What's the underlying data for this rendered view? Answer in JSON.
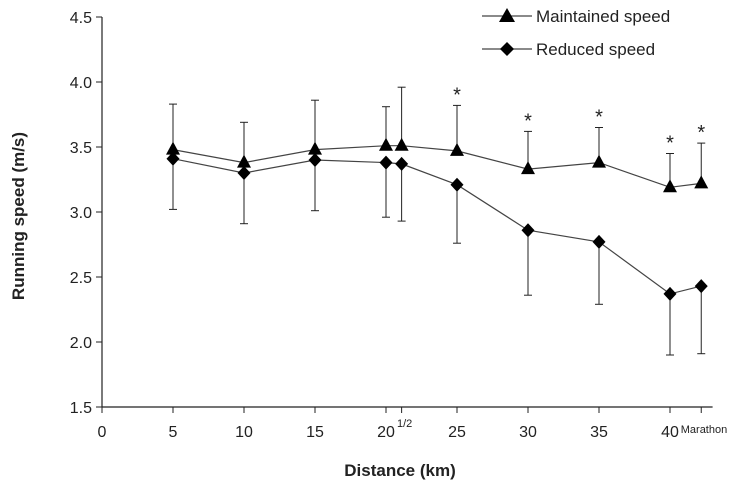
{
  "chart_data": {
    "type": "line",
    "title": "",
    "xlabel": "Distance (km)",
    "ylabel": "Running speed (m/s)",
    "xlim": [
      0,
      43
    ],
    "ylim": [
      1.5,
      4.5
    ],
    "x_ticks": [
      "0",
      "5",
      "10",
      "15",
      "20",
      "25",
      "30",
      "35",
      "40"
    ],
    "y_ticks": [
      "1.5",
      "2.0",
      "2.5",
      "3.0",
      "3.5",
      "4.0",
      "4.5"
    ],
    "special_labels": {
      "half_marathon": "1/2",
      "marathon": "Marathon"
    },
    "x": [
      5,
      10,
      15,
      20,
      21.1,
      25,
      30,
      35,
      40,
      42.2
    ],
    "legend_position": "top-right",
    "series": [
      {
        "name": "Maintained speed",
        "marker": "triangle",
        "values": [
          3.48,
          3.38,
          3.48,
          3.51,
          3.51,
          3.47,
          3.33,
          3.38,
          3.19,
          3.22
        ],
        "error_up": [
          0.35,
          0.31,
          0.38,
          0.3,
          0.45,
          0.35,
          0.29,
          0.27,
          0.26,
          0.31
        ]
      },
      {
        "name": "Reduced speed",
        "marker": "diamond",
        "values": [
          3.41,
          3.3,
          3.4,
          3.38,
          3.37,
          3.21,
          2.86,
          2.77,
          2.37,
          2.43
        ],
        "error_down": [
          0.39,
          0.39,
          0.39,
          0.42,
          0.44,
          0.45,
          0.5,
          0.48,
          0.47,
          0.52
        ]
      }
    ],
    "significance_marker": "*",
    "significant_x": [
      25,
      30,
      35,
      40,
      42.2
    ]
  }
}
